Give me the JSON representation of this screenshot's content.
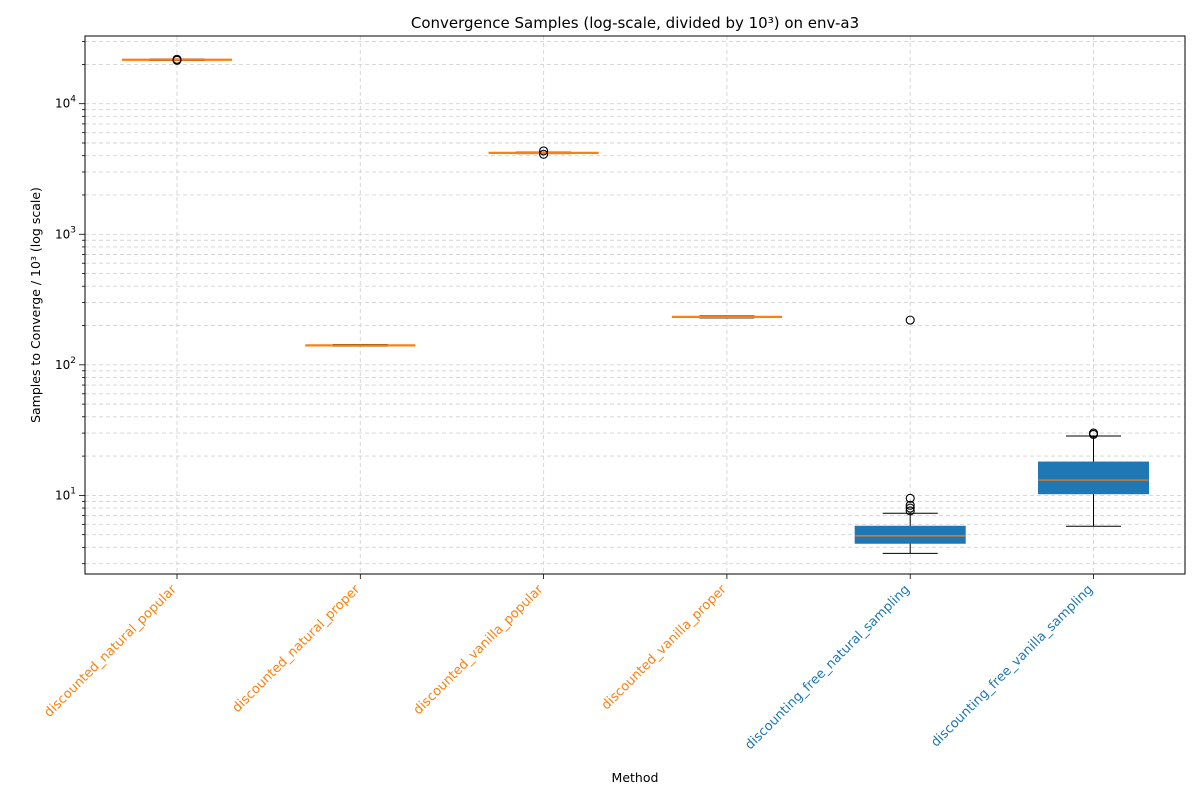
{
  "chart_data": {
    "type": "box",
    "title": "Convergence Samples (log-scale, divided by 10³) on env-a3",
    "xlabel": "Method",
    "ylabel": "Samples to Converge / 10³ (log scale)",
    "yscale": "log",
    "ylim": [
      2.5,
      33000
    ],
    "yticks": [
      {
        "value": 10,
        "label": "10¹"
      },
      {
        "value": 100,
        "label": "10²"
      },
      {
        "value": 1000,
        "label": "10³"
      },
      {
        "value": 10000,
        "label": "10⁴"
      }
    ],
    "grid": true,
    "colors": {
      "discounted": "#ff7f0e",
      "discounting_free": "#1f77b4",
      "median_line": "#ff7f0e",
      "whisker": "#000000"
    },
    "boxes": [
      {
        "label": "discounted_natural_popular",
        "group": "discounted",
        "q1": 21500,
        "median": 21700,
        "q3": 21900,
        "whisker_low": 21400,
        "whisker_high": 22000,
        "outliers": [
          21500,
          21900
        ]
      },
      {
        "label": "discounted_natural_proper",
        "group": "discounted",
        "q1": 140,
        "median": 141,
        "q3": 142,
        "whisker_low": 139,
        "whisker_high": 143,
        "outliers": []
      },
      {
        "label": "discounted_vanilla_popular",
        "group": "discounted",
        "q1": 4180,
        "median": 4200,
        "q3": 4230,
        "whisker_low": 4150,
        "whisker_high": 4260,
        "outliers": [
          4100,
          4350
        ]
      },
      {
        "label": "discounted_vanilla_proper",
        "group": "discounted",
        "q1": 231,
        "median": 233,
        "q3": 235,
        "whisker_low": 229,
        "whisker_high": 237,
        "outliers": []
      },
      {
        "label": "discounting_free_natural_sampling",
        "group": "discounting_free",
        "q1": 4.3,
        "median": 4.9,
        "q3": 5.8,
        "whisker_low": 3.6,
        "whisker_high": 7.3,
        "outliers": [
          7.6,
          8.0,
          8.4,
          9.5,
          220
        ]
      },
      {
        "label": "discounting_free_vanilla_sampling",
        "group": "discounting_free",
        "q1": 10.3,
        "median": 13.1,
        "q3": 18.0,
        "whisker_low": 5.8,
        "whisker_high": 28.5,
        "outliers": [
          29.3,
          30.0
        ]
      }
    ]
  }
}
